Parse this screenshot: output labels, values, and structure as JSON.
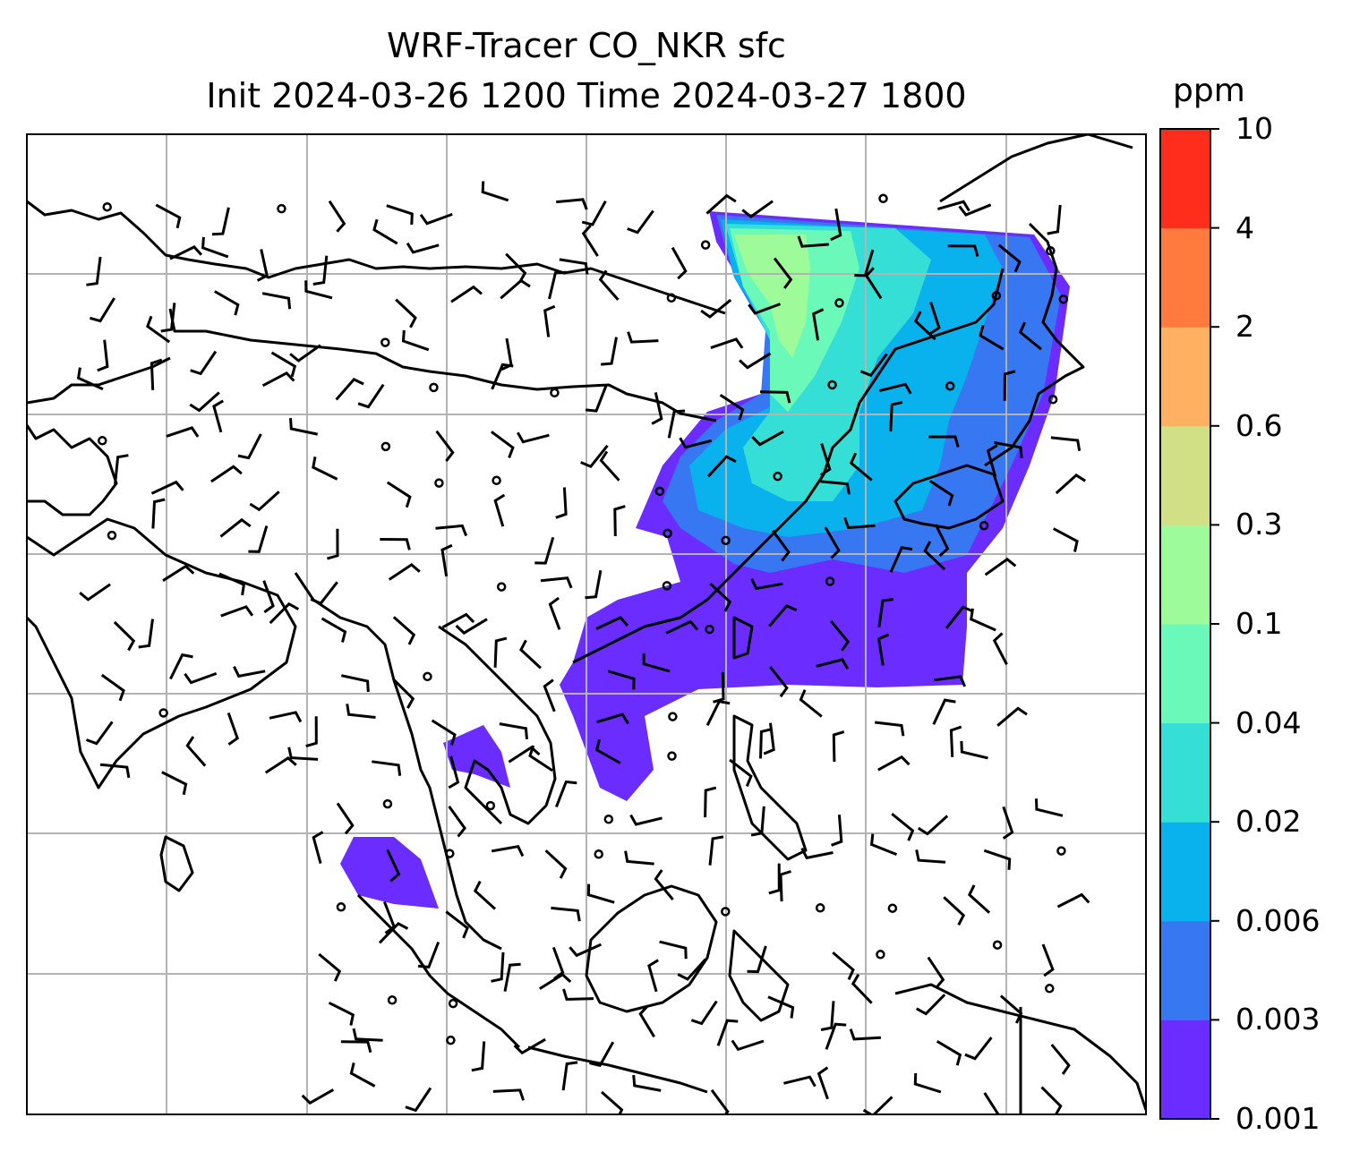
{
  "title": {
    "line1": "WRF-Tracer CO_NKR sfc",
    "line2": "Init 2024-03-26 1200 Time 2024-03-27 1800"
  },
  "colorbar": {
    "unit": "ppm",
    "levels": [
      "0.001",
      "0.003",
      "0.006",
      "0.02",
      "0.04",
      "0.1",
      "0.3",
      "0.6",
      "2",
      "4",
      "10"
    ],
    "colors": [
      "#6a2cff",
      "#3877f2",
      "#09b2ec",
      "#36dfd5",
      "#6bf9b9",
      "#9dfb9a",
      "#d1e085",
      "#ffb060",
      "#ff7a3d",
      "#ff2d1c"
    ]
  },
  "map": {
    "coastline_color": "#000000",
    "gridline_color": "#b3b3b3",
    "tracer_plume": "CO_NKR",
    "wind_barbs": true
  }
}
